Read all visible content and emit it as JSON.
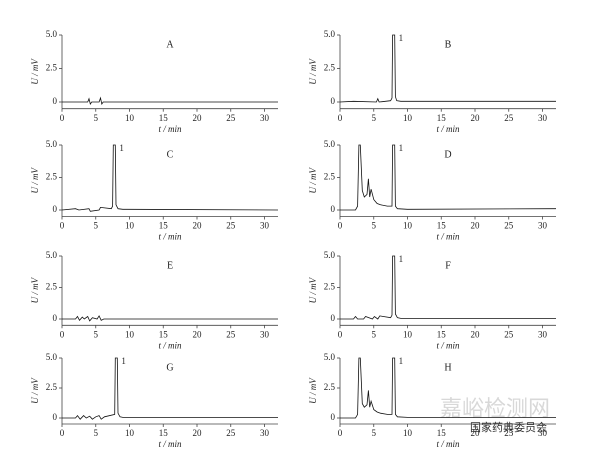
{
  "chart_data": [
    {
      "type": "line",
      "title": "A",
      "xlabel": "t / min",
      "ylabel": "U / mV",
      "color": "#111",
      "x": [
        0,
        3.8,
        4.0,
        4.2,
        4.4,
        5.5,
        5.7,
        5.9,
        6.1,
        32
      ],
      "values": [
        0,
        0,
        0.25,
        -0.15,
        0,
        0,
        0.3,
        -0.15,
        0,
        0
      ],
      "xlim": [
        0,
        32
      ],
      "ylim": [
        -0.5,
        5
      ],
      "xticks": [
        0,
        5,
        10,
        15,
        20,
        25,
        30
      ],
      "yticks": [
        0,
        2.5,
        {
          "value": 5,
          "label": "5.0"
        }
      ]
    },
    {
      "type": "line",
      "title": "B",
      "annotation": "1",
      "xlabel": "t / min",
      "ylabel": "U / mV",
      "color": "#111",
      "x": [
        0,
        2,
        5.4,
        5.6,
        5.8,
        7.5,
        7.7,
        7.8,
        8.1,
        8.2,
        8.4,
        9,
        32
      ],
      "values": [
        0,
        0.05,
        0,
        0.25,
        0,
        0.1,
        0.3,
        5,
        5,
        0.4,
        0.1,
        0.05,
        0.05
      ],
      "xlim": [
        0,
        32
      ],
      "ylim": [
        -0.5,
        5
      ],
      "xticks": [
        0,
        5,
        10,
        15,
        20,
        25,
        30
      ],
      "yticks": [
        0,
        2.5,
        {
          "value": 5,
          "label": "5.0"
        }
      ]
    },
    {
      "type": "line",
      "title": "C",
      "annotation": "1",
      "xlabel": "t / min",
      "ylabel": "U / mV",
      "color": "#111",
      "x": [
        0,
        2,
        2.5,
        4,
        4.2,
        5.5,
        5.7,
        7.3,
        7.5,
        7.6,
        7.9,
        8.0,
        8.3,
        9,
        32
      ],
      "values": [
        0,
        0.1,
        0,
        0.1,
        -0.1,
        0,
        0.2,
        0.1,
        0.3,
        5,
        5,
        0.4,
        0.1,
        0.05,
        0
      ],
      "xlim": [
        0,
        32
      ],
      "ylim": [
        -0.5,
        5
      ],
      "xticks": [
        0,
        5,
        10,
        15,
        20,
        25,
        30
      ],
      "yticks": [
        0,
        2.5,
        {
          "value": 5,
          "label": "5.0"
        }
      ]
    },
    {
      "type": "line",
      "title": "D",
      "annotation": "1",
      "xlabel": "t / min",
      "ylabel": "U / mV",
      "color": "#111",
      "x": [
        0,
        2.3,
        2.6,
        2.8,
        3.0,
        3.3,
        3.6,
        4.0,
        4.2,
        4.4,
        4.6,
        5.0,
        5.5,
        6.0,
        7.0,
        7.7,
        7.8,
        8.1,
        8.2,
        8.5,
        10,
        32
      ],
      "values": [
        0,
        0,
        0.3,
        5,
        5,
        1.5,
        1.0,
        1.2,
        2.4,
        1.0,
        1.6,
        0.8,
        0.5,
        0.4,
        0.3,
        0.3,
        5,
        5,
        0.3,
        0.1,
        0.05,
        0.1
      ],
      "xlim": [
        0,
        32
      ],
      "ylim": [
        -0.5,
        5
      ],
      "xticks": [
        0,
        5,
        10,
        15,
        20,
        25,
        30
      ],
      "yticks": [
        0,
        2.5,
        {
          "value": 5,
          "label": "5.0"
        }
      ]
    },
    {
      "type": "line",
      "title": "E",
      "xlabel": "t / min",
      "ylabel": "U / mV",
      "color": "#111",
      "x": [
        0,
        2,
        2.3,
        2.6,
        3.0,
        3.3,
        3.8,
        4.1,
        4.5,
        5.2,
        5.5,
        5.8,
        6.2,
        32
      ],
      "values": [
        0,
        0,
        0.2,
        -0.1,
        0.15,
        0,
        0.2,
        -0.15,
        0.1,
        0,
        0.25,
        -0.1,
        0,
        0
      ],
      "xlim": [
        0,
        32
      ],
      "ylim": [
        -0.5,
        5
      ],
      "xticks": [
        0,
        5,
        10,
        15,
        20,
        25,
        30
      ],
      "yticks": [
        0,
        2.5,
        {
          "value": 5,
          "label": "5.0"
        }
      ]
    },
    {
      "type": "line",
      "title": "F",
      "annotation": "1",
      "xlabel": "t / min",
      "ylabel": "U / mV",
      "color": "#111",
      "x": [
        0,
        2,
        2.3,
        2.6,
        3.5,
        3.8,
        4.8,
        5.1,
        5.6,
        5.9,
        7.5,
        7.7,
        7.8,
        8.1,
        8.2,
        8.5,
        9,
        32
      ],
      "values": [
        0,
        0,
        0.2,
        0,
        0,
        0.2,
        0,
        0.2,
        0,
        0.25,
        0.1,
        0.3,
        5,
        5,
        0.4,
        0.1,
        0.05,
        0.05
      ],
      "xlim": [
        0,
        32
      ],
      "ylim": [
        -0.5,
        5
      ],
      "xticks": [
        0,
        5,
        10,
        15,
        20,
        25,
        30
      ],
      "yticks": [
        0,
        2.5,
        {
          "value": 5,
          "label": "5.0"
        }
      ]
    },
    {
      "type": "line",
      "title": "G",
      "annotation": "1",
      "xlabel": "t / min",
      "ylabel": "U / mV",
      "color": "#111",
      "x": [
        0,
        2,
        2.3,
        2.7,
        3.2,
        3.6,
        4.1,
        4.5,
        5.0,
        5.5,
        5.8,
        6.3,
        7.8,
        7.9,
        8.2,
        8.3,
        8.6,
        9,
        32
      ],
      "values": [
        0,
        0,
        0.2,
        -0.1,
        0.2,
        0,
        0.15,
        -0.1,
        0.1,
        0.2,
        -0.1,
        0.1,
        0.3,
        5,
        5,
        0.4,
        0.1,
        0.05,
        0.05
      ],
      "xlim": [
        0,
        32
      ],
      "ylim": [
        -0.5,
        5
      ],
      "xticks": [
        0,
        5,
        10,
        15,
        20,
        25,
        30
      ],
      "yticks": [
        0,
        2.5,
        {
          "value": 5,
          "label": "5.0"
        }
      ]
    },
    {
      "type": "line",
      "title": "H",
      "annotation": "1",
      "xlabel": "t / min",
      "ylabel": "U / mV",
      "color": "#111",
      "x": [
        0,
        2.3,
        2.6,
        2.8,
        3.0,
        3.3,
        3.6,
        4.0,
        4.2,
        4.4,
        4.6,
        5.0,
        5.5,
        6.0,
        7.0,
        7.7,
        7.8,
        8.1,
        8.2,
        8.5,
        10,
        32
      ],
      "values": [
        0,
        0,
        0.3,
        5,
        5,
        1.2,
        0.9,
        1.1,
        2.3,
        0.9,
        1.4,
        0.7,
        0.5,
        0.4,
        0.3,
        0.3,
        5,
        5,
        0.3,
        0.1,
        0.05,
        0.05
      ],
      "xlim": [
        0,
        32
      ],
      "ylim": [
        -0.5,
        5
      ],
      "xticks": [
        0,
        5,
        10,
        15,
        20,
        25,
        30
      ],
      "yticks": [
        0,
        2.5,
        {
          "value": 5,
          "label": "5.0"
        }
      ]
    }
  ],
  "watermark": {
    "site": "嘉峪检测网",
    "source": "国家药典委员会"
  }
}
